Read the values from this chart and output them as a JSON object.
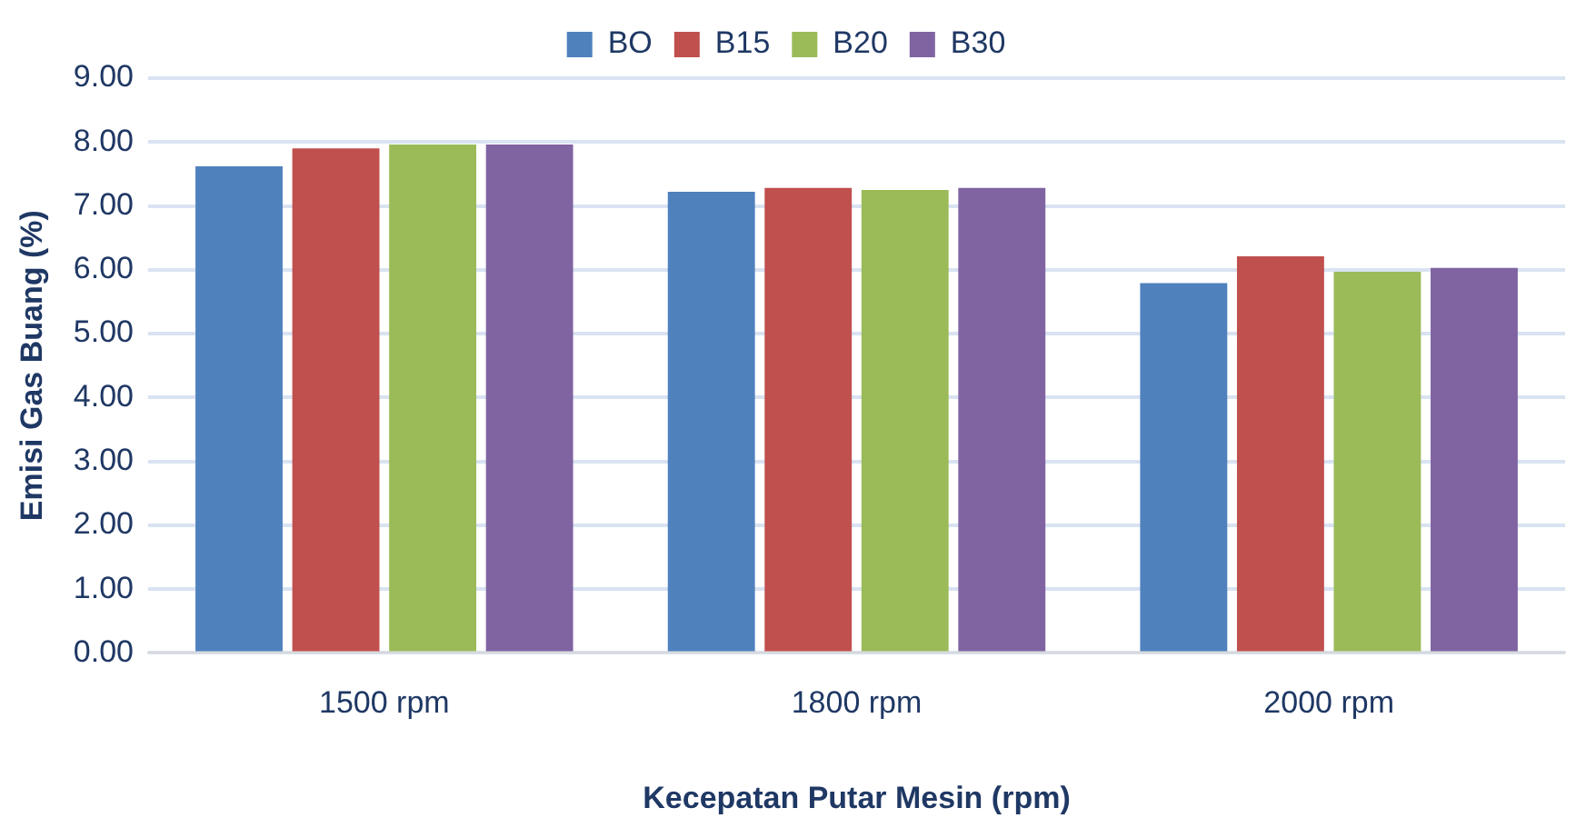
{
  "chart_data": {
    "type": "bar",
    "xlabel": "Kecepatan Putar Mesin (rpm)",
    "ylabel": "Emisi Gas Buang (%)",
    "categories": [
      "1500 rpm",
      "1800 rpm",
      "2000 rpm"
    ],
    "series": [
      {
        "name": "BO",
        "color": "#4f81bd",
        "values": [
          7.62,
          7.22,
          5.79
        ]
      },
      {
        "name": "B15",
        "color": "#c0504d",
        "values": [
          7.9,
          7.28,
          6.21
        ]
      },
      {
        "name": "B20",
        "color": "#9bbb59",
        "values": [
          7.96,
          7.25,
          5.97
        ]
      },
      {
        "name": "B30",
        "color": "#8064a2",
        "values": [
          7.96,
          7.28,
          6.03
        ]
      }
    ],
    "ylim": [
      0,
      9
    ],
    "yticks": [
      {
        "value": 0,
        "label": "0.00"
      },
      {
        "value": 1,
        "label": "1.00"
      },
      {
        "value": 2,
        "label": "2.00"
      },
      {
        "value": 3,
        "label": "3.00"
      },
      {
        "value": 4,
        "label": "4.00"
      },
      {
        "value": 5,
        "label": "5.00"
      },
      {
        "value": 6,
        "label": "6.00"
      },
      {
        "value": 7,
        "label": "7.00"
      },
      {
        "value": 8,
        "label": "8.00"
      },
      {
        "value": 9,
        "label": "9.00"
      }
    ],
    "grid": "y",
    "legend": "top"
  }
}
